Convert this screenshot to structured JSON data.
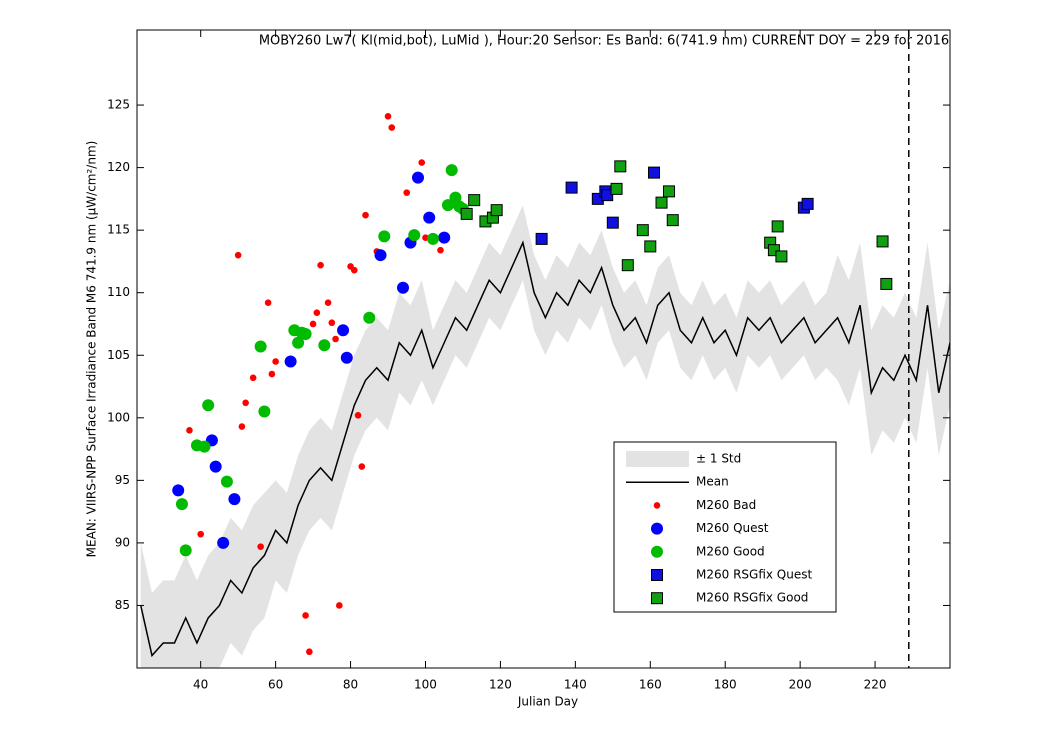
{
  "chart_data": {
    "type": "line",
    "title": "MOBY260   Lw7( Kl(mid,bot), LuMid ),   Hour:20 Sensor: Es Band: 6(741.9 nm)   CURRENT DOY = 229 for 2016",
    "x_label": "Julian Day",
    "y_label": "MEAN: VIIRS-NPP Surface Irradiance Band M6 741.9 nm (µW/cm²/nm)",
    "xlim": [
      23,
      240
    ],
    "ylim": [
      80,
      131
    ],
    "xticks": [
      40,
      60,
      80,
      100,
      120,
      140,
      160,
      180,
      200,
      220
    ],
    "yticks": [
      85,
      90,
      95,
      100,
      105,
      110,
      115,
      120,
      125
    ],
    "vline": 229,
    "series": [
      {
        "name": "± 1 Std",
        "type": "band",
        "color": "#e3e3e3",
        "x": [
          24,
          27,
          30,
          33,
          36,
          39,
          42,
          45,
          48,
          51,
          54,
          57,
          60,
          63,
          66,
          69,
          72,
          75,
          78,
          81,
          84,
          87,
          90,
          93,
          96,
          99,
          102,
          105,
          108,
          111,
          114,
          117,
          120,
          123,
          126,
          129,
          132,
          135,
          138,
          141,
          144,
          147,
          150,
          153,
          156,
          159,
          162,
          165,
          168,
          171,
          174,
          177,
          180,
          183,
          186,
          189,
          192,
          195,
          198,
          201,
          204,
          207,
          210,
          213,
          216,
          219,
          222,
          225,
          228,
          231,
          234,
          237,
          240
        ],
        "lower": [
          80,
          76,
          77,
          77,
          79,
          77,
          79,
          80,
          82,
          81,
          83,
          84,
          87,
          86,
          89,
          91,
          92,
          91,
          94,
          97,
          99,
          100,
          99,
          102,
          101,
          103,
          101,
          103,
          105,
          104,
          106,
          108,
          107,
          109,
          111,
          107,
          105,
          107,
          106,
          108,
          107,
          109,
          106,
          104,
          105,
          103,
          106,
          107,
          104,
          103,
          105,
          103,
          104,
          102,
          105,
          104,
          105,
          103,
          104,
          105,
          103,
          104,
          103,
          101,
          104,
          97,
          99,
          98,
          100,
          98,
          104,
          97,
          101
        ],
        "upper": [
          90,
          86,
          87,
          87,
          89,
          87,
          89,
          90,
          92,
          91,
          93,
          94,
          95,
          94,
          97,
          99,
          100,
          99,
          102,
          105,
          107,
          108,
          107,
          110,
          109,
          111,
          107,
          109,
          111,
          110,
          112,
          114,
          113,
          115,
          117,
          113,
          111,
          113,
          112,
          114,
          113,
          115,
          112,
          110,
          111,
          109,
          112,
          113,
          110,
          109,
          111,
          109,
          110,
          108,
          111,
          110,
          111,
          109,
          110,
          111,
          109,
          110,
          113,
          111,
          114,
          107,
          109,
          108,
          110,
          108,
          114,
          107,
          111
        ]
      },
      {
        "name": "Mean",
        "type": "line",
        "color": "#000000",
        "x": [
          24,
          27,
          30,
          33,
          36,
          39,
          42,
          45,
          48,
          51,
          54,
          57,
          60,
          63,
          66,
          69,
          72,
          75,
          78,
          81,
          84,
          87,
          90,
          93,
          96,
          99,
          102,
          105,
          108,
          111,
          114,
          117,
          120,
          123,
          126,
          129,
          132,
          135,
          138,
          141,
          144,
          147,
          150,
          153,
          156,
          159,
          162,
          165,
          168,
          171,
          174,
          177,
          180,
          183,
          186,
          189,
          192,
          195,
          198,
          201,
          204,
          207,
          210,
          213,
          216,
          219,
          222,
          225,
          228,
          231,
          234,
          237,
          240
        ],
        "values": [
          85,
          81,
          82,
          82,
          84,
          82,
          84,
          85,
          87,
          86,
          88,
          89,
          91,
          90,
          93,
          95,
          96,
          95,
          98,
          101,
          103,
          104,
          103,
          106,
          105,
          107,
          104,
          106,
          108,
          107,
          109,
          111,
          110,
          112,
          114,
          110,
          108,
          110,
          109,
          111,
          110,
          112,
          109,
          107,
          108,
          106,
          109,
          110,
          107,
          106,
          108,
          106,
          107,
          105,
          108,
          107,
          108,
          106,
          107,
          108,
          106,
          107,
          108,
          106,
          109,
          102,
          104,
          103,
          105,
          103,
          109,
          102,
          106
        ]
      },
      {
        "name": "M260 Bad",
        "type": "scatter",
        "marker": "dot",
        "color": "#ff0000",
        "x": [
          37,
          40,
          50,
          51,
          52,
          54,
          56,
          58,
          59,
          60,
          68,
          69,
          70,
          71,
          72,
          74,
          75,
          76,
          77,
          80,
          81,
          82,
          83,
          84,
          87,
          90,
          91,
          95,
          99,
          100,
          104
        ],
        "values": [
          99,
          90.7,
          113,
          99.3,
          101.2,
          103.2,
          89.7,
          109.2,
          103.5,
          104.5,
          84.2,
          81.3,
          107.5,
          108.4,
          112.2,
          109.2,
          107.6,
          106.3,
          85,
          112.1,
          111.8,
          100.2,
          96.1,
          116.2,
          113.3,
          124.1,
          123.2,
          118,
          120.4,
          114.4,
          113.4
        ]
      },
      {
        "name": "M260 Quest",
        "type": "scatter",
        "marker": "circle",
        "color": "#0000ff",
        "x": [
          34,
          43,
          44,
          46,
          49,
          64,
          78,
          79,
          88,
          94,
          96,
          98,
          101,
          105
        ],
        "values": [
          94.2,
          98.2,
          96.1,
          90,
          93.5,
          104.5,
          107,
          104.8,
          113,
          110.4,
          114,
          119.2,
          116,
          114.4
        ]
      },
      {
        "name": "M260 Good",
        "type": "scatter",
        "marker": "circle",
        "color": "#00bb00",
        "x": [
          35,
          36,
          39,
          41,
          42,
          47,
          56,
          57,
          65,
          66,
          67,
          68,
          73,
          85,
          89,
          97,
          102,
          106,
          107,
          108,
          109,
          110
        ],
        "values": [
          93.1,
          89.4,
          97.8,
          97.7,
          101,
          94.9,
          105.7,
          100.5,
          107,
          106,
          106.8,
          106.7,
          105.8,
          108,
          114.5,
          114.6,
          114.3,
          117,
          119.8,
          117.6,
          116.9,
          116.7
        ]
      },
      {
        "name": "M260 RSGfix Quest",
        "type": "scatter",
        "marker": "square",
        "color": "#1010e0",
        "x": [
          131,
          139,
          146,
          148,
          148.5,
          150,
          161,
          201,
          202
        ],
        "values": [
          114.3,
          118.4,
          117.5,
          118.1,
          117.8,
          115.6,
          119.6,
          116.8,
          117.1
        ]
      },
      {
        "name": "M260 RSGfix Good",
        "type": "scatter",
        "marker": "square",
        "color": "#10a010",
        "x": [
          111,
          113,
          116,
          118,
          119,
          151,
          152,
          154,
          158,
          160,
          163,
          165,
          166,
          192,
          193,
          194,
          195,
          222,
          223
        ],
        "values": [
          116.3,
          117.4,
          115.7,
          116,
          116.6,
          118.3,
          120.1,
          112.2,
          115,
          113.7,
          117.2,
          118.1,
          115.8,
          114,
          113.4,
          115.3,
          112.9,
          114.1,
          110.7
        ]
      }
    ]
  }
}
